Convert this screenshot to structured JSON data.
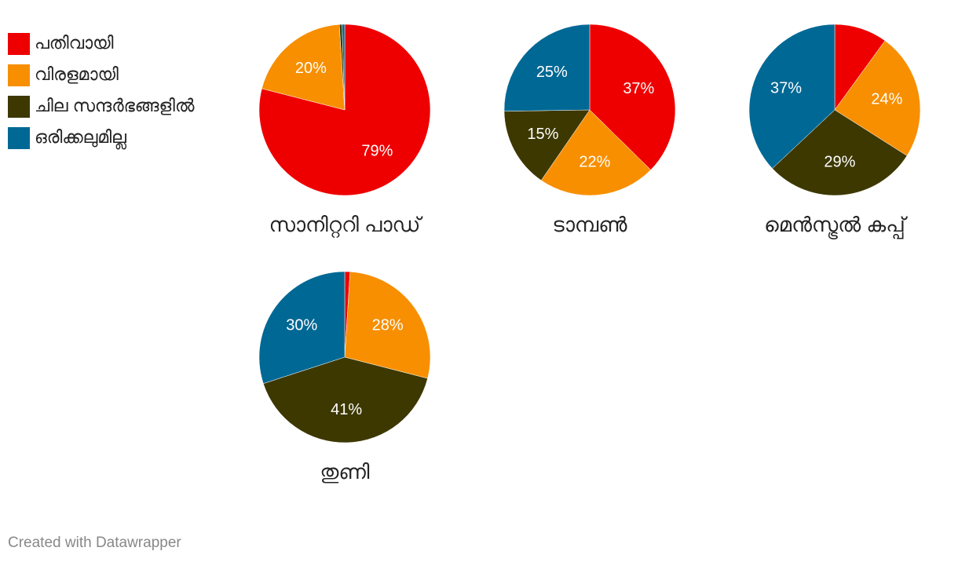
{
  "legend": [
    {
      "name": "പതിവായി",
      "color": "#ee0000"
    },
    {
      "name": "വിരളമായി",
      "color": "#f78f00"
    },
    {
      "name": "ചില സന്ദർഭങ്ങളിൽ",
      "color": "#3d3800"
    },
    {
      "name": "ഒരിക്കലുമില്ല",
      "color": "#006894"
    }
  ],
  "chart_data": [
    {
      "type": "pie",
      "title": "സാനിറ്ററി പാഡ്",
      "values": [
        79,
        20,
        0.5,
        0.5
      ],
      "value_labels": [
        "79%",
        "20%",
        null,
        null
      ]
    },
    {
      "type": "pie",
      "title": "ടാമ്പൺ",
      "values": [
        37,
        22,
        15,
        25
      ],
      "value_labels": [
        "37%",
        "22%",
        "15%",
        "25%"
      ]
    },
    {
      "type": "pie",
      "title": "മെൻസ്ട്രൽ കപ്പ്",
      "values": [
        10,
        24,
        29,
        37
      ],
      "value_labels": [
        null,
        "24%",
        "29%",
        "37%"
      ]
    },
    {
      "type": "pie",
      "title": "തുണി",
      "values": [
        1,
        28,
        41,
        30
      ],
      "value_labels": [
        null,
        "28%",
        "41%",
        "30%"
      ]
    }
  ],
  "footer": "Created with Datawrapper"
}
